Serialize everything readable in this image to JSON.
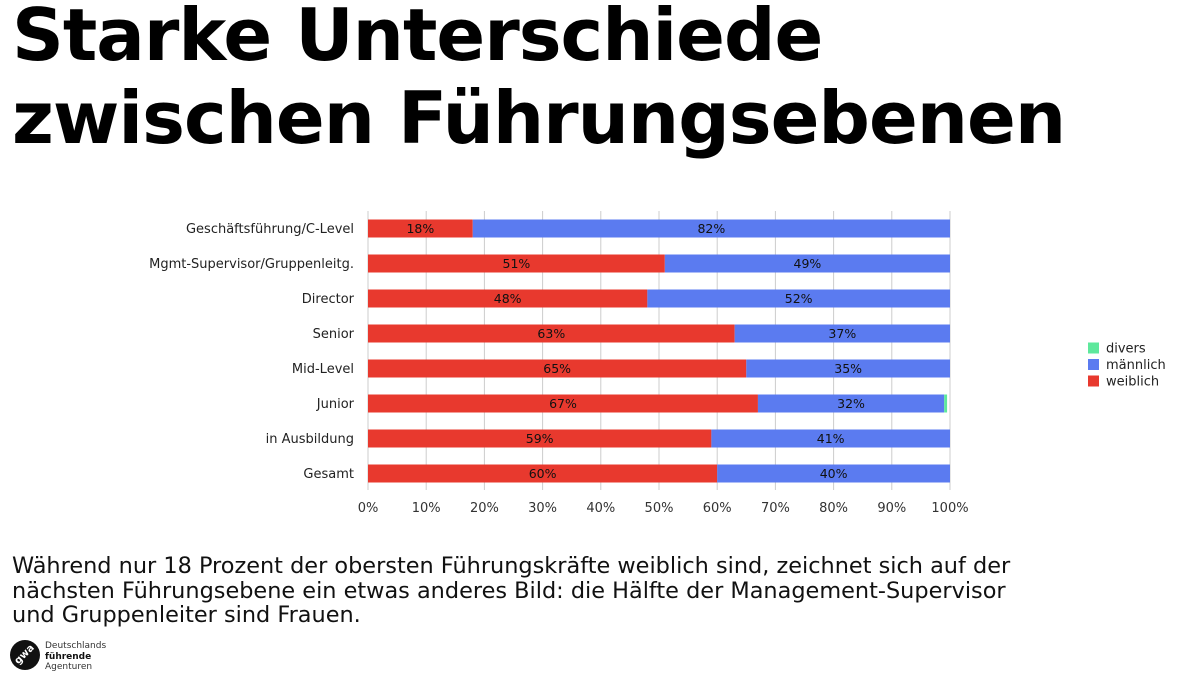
{
  "title": {
    "line1": "Starke Unterschiede",
    "line2": "zwischen Führungsebenen"
  },
  "caption": {
    "line1": "Während nur 18 Prozent der obersten Führungskräfte weiblich sind, zeichnet sich auf der",
    "line2": "nächsten Führungsebene ein etwas anderes Bild: die Hälfte der Management-Supervisor",
    "line3": "und Gruppenleiter sind Frauen."
  },
  "logo": {
    "mark": "gwa",
    "line1": "Deutschlands",
    "line2": "führende",
    "line3": "Agenturen"
  },
  "colors": {
    "weiblich": "#E8392E",
    "maennlich": "#5B7BF0",
    "divers": "#5EE89C",
    "grid": "#CCCCCC"
  },
  "chart_data": {
    "type": "bar",
    "orientation": "horizontal",
    "stacked": true,
    "percent_stacked": true,
    "categories": [
      "Geschäftsführung/C-Level",
      "Mgmt-Supervisor/Gruppenleitg.",
      "Director",
      "Senior",
      "Mid-Level",
      "Junior",
      "in Ausbildung",
      "Gesamt"
    ],
    "series": [
      {
        "name": "weiblich",
        "values": [
          18,
          51,
          48,
          63,
          65,
          67,
          59,
          60
        ],
        "labels": [
          "18%",
          "51%",
          "48%",
          "63%",
          "65%",
          "67%",
          "59%",
          "60%"
        ]
      },
      {
        "name": "männlich",
        "values": [
          82,
          49,
          52,
          37,
          35,
          32,
          41,
          40
        ],
        "labels": [
          "82%",
          "49%",
          "52%",
          "37%",
          "35%",
          "32%",
          "41%",
          "40%"
        ]
      },
      {
        "name": "divers",
        "values": [
          0,
          0,
          0,
          0,
          0,
          0.5,
          0,
          0
        ],
        "labels": []
      }
    ],
    "x_ticks": [
      "0%",
      "10%",
      "20%",
      "30%",
      "40%",
      "50%",
      "60%",
      "70%",
      "80%",
      "90%",
      "100%"
    ],
    "xlim": [
      0,
      100
    ],
    "grid": true,
    "legend_position": "right",
    "legend": [
      "divers",
      "männlich",
      "weiblich"
    ]
  }
}
